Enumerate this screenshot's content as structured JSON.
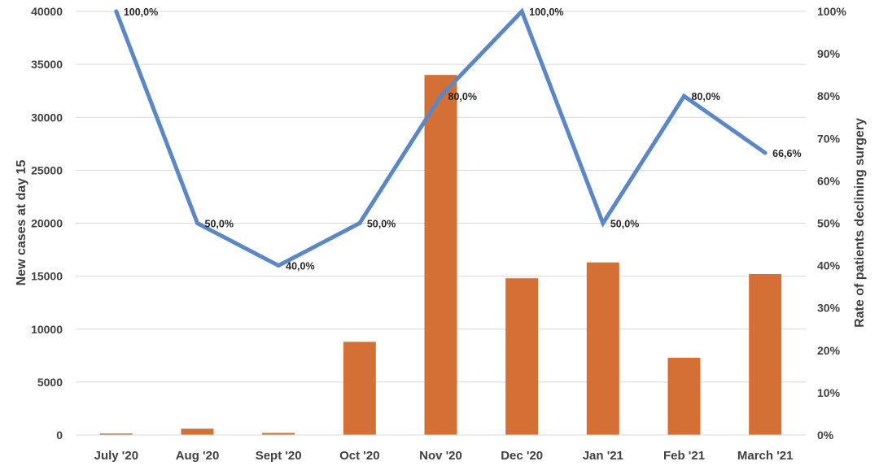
{
  "chart_data": {
    "type": "bar+line",
    "title": "",
    "categories": [
      "July '20",
      "Aug '20",
      "Sept '20",
      "Oct '20",
      "Nov '20",
      "Dec '20",
      "Jan '21",
      "Feb '21",
      "March '21"
    ],
    "series": [
      {
        "kind": "bar",
        "axis": "left",
        "color": "#D46F35",
        "values": [
          150,
          600,
          200,
          8800,
          34000,
          14800,
          16300,
          7300,
          15200
        ]
      },
      {
        "kind": "line",
        "axis": "right",
        "color": "#5B87C5",
        "values": [
          100.0,
          50.0,
          40.0,
          50.0,
          80.0,
          100.0,
          50.0,
          80.0,
          66.6
        ],
        "labels": [
          "100,0%",
          "50,0%",
          "40,0%",
          "50,0%",
          "80,0%",
          "100,0%",
          "50,0%",
          "80,0%",
          "66,6%"
        ]
      }
    ],
    "y_left": {
      "label": "New cases at day 15",
      "range": [
        0,
        40000
      ],
      "ticks": [
        "0",
        "5000",
        "10000",
        "15000",
        "20000",
        "25000",
        "30000",
        "35000",
        "40000"
      ]
    },
    "y_right": {
      "label": "Rate of patients declining surgery",
      "range": [
        0,
        100
      ],
      "ticks": [
        "0%",
        "10%",
        "20%",
        "30%",
        "40%",
        "50%",
        "60%",
        "70%",
        "80%",
        "90%",
        "100%"
      ]
    },
    "grid": true,
    "grid_color": "#D9D9D9",
    "text_color": "#404040"
  }
}
